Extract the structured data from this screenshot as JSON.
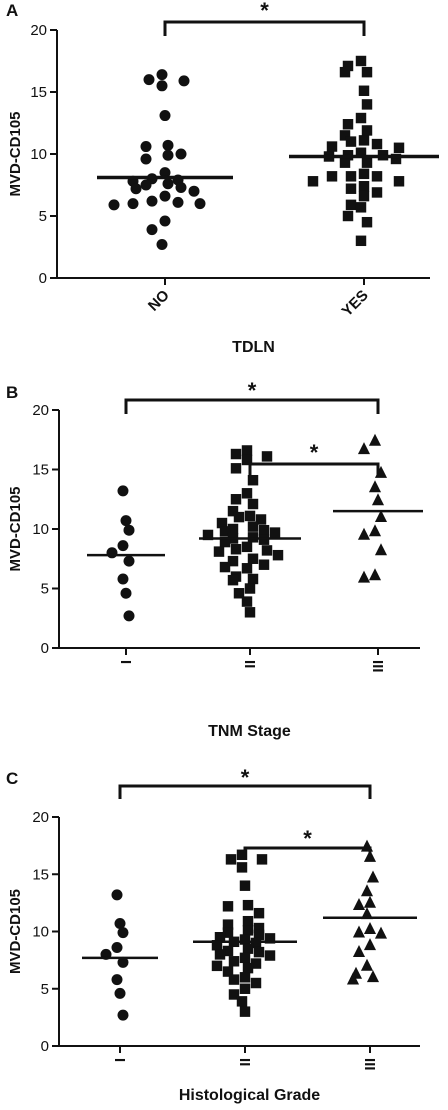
{
  "chart_data": [
    {
      "panel": "A",
      "type": "scatter",
      "ylabel": "MVD-CD105",
      "xlabel": "TDLN",
      "ylim": [
        0,
        20
      ],
      "yticks": [
        "0",
        "5",
        "10",
        "15",
        "20"
      ],
      "categories": [
        "NO",
        "YES"
      ],
      "category_label_rotation": -45,
      "grid": false,
      "series": [
        {
          "category": "NO",
          "marker": "circle",
          "mean": 8.1,
          "values": [
            16.4,
            16.0,
            15.5,
            15.9,
            13.1,
            10.6,
            10.7,
            10.0,
            9.9,
            9.6,
            8.5,
            8.0,
            7.9,
            7.6,
            7.8,
            7.5,
            7.3,
            7.2,
            7.0,
            6.6,
            6.1,
            6.2,
            6.0,
            6.0,
            5.9,
            4.6,
            3.9,
            2.7
          ]
        },
        {
          "category": "YES",
          "marker": "square",
          "mean": 9.8,
          "values": [
            17.5,
            17.1,
            16.6,
            16.6,
            15.1,
            14.0,
            12.9,
            12.4,
            11.9,
            11.5,
            11.1,
            11.0,
            10.8,
            10.6,
            10.5,
            10.1,
            9.9,
            9.9,
            9.8,
            9.6,
            9.3,
            9.3,
            8.4,
            8.2,
            8.2,
            8.2,
            7.8,
            7.8,
            7.4,
            7.2,
            6.9,
            6.6,
            5.9,
            5.7,
            5.0,
            4.5,
            3.0
          ]
        }
      ],
      "comparisons": [
        {
          "from": "NO",
          "to": "YES",
          "label": "*"
        }
      ]
    },
    {
      "panel": "B",
      "type": "scatter",
      "ylabel": "MVD-CD105",
      "xlabel": "TNM Stage",
      "ylim": [
        0,
        20
      ],
      "yticks": [
        "0",
        "5",
        "10",
        "15",
        "20"
      ],
      "categories": [
        "I",
        "II",
        "III"
      ],
      "category_label_rotation": -90,
      "grid": false,
      "series": [
        {
          "category": "I",
          "marker": "circle",
          "mean": 7.8,
          "values": [
            13.2,
            10.7,
            9.9,
            8.6,
            8.0,
            7.3,
            5.8,
            4.6,
            2.7
          ]
        },
        {
          "category": "II",
          "marker": "square",
          "mean": 9.2,
          "values": [
            16.6,
            16.3,
            16.1,
            15.8,
            15.1,
            14.1,
            13.0,
            12.5,
            12.1,
            11.5,
            11.1,
            11.0,
            10.8,
            10.5,
            10.2,
            10.0,
            9.9,
            9.8,
            9.7,
            9.5,
            9.3,
            9.2,
            9.1,
            8.9,
            8.5,
            8.3,
            8.2,
            8.1,
            7.8,
            7.5,
            7.3,
            7.0,
            6.8,
            6.7,
            6.0,
            5.8,
            5.7,
            5.0,
            4.6,
            3.9,
            3.0
          ]
        },
        {
          "category": "III",
          "marker": "triangle",
          "mean": 11.5,
          "values": [
            17.4,
            16.7,
            14.7,
            13.5,
            12.4,
            11.0,
            9.8,
            9.5,
            8.2,
            6.1,
            5.9
          ]
        }
      ],
      "comparisons": [
        {
          "from": "I",
          "to": "III",
          "label": "*"
        },
        {
          "from": "II",
          "to": "III",
          "label": "*"
        }
      ]
    },
    {
      "panel": "C",
      "type": "scatter",
      "ylabel": "MVD-CD105",
      "xlabel": "Histological Grade",
      "ylim": [
        0,
        20
      ],
      "yticks": [
        "0",
        "5",
        "10",
        "15",
        "20"
      ],
      "categories": [
        "I",
        "II",
        "III"
      ],
      "category_label_rotation": -90,
      "grid": false,
      "series": [
        {
          "category": "I",
          "marker": "circle",
          "mean": 7.7,
          "values": [
            13.2,
            10.7,
            9.9,
            8.6,
            8.0,
            7.3,
            5.8,
            4.6,
            2.7
          ]
        },
        {
          "category": "II",
          "marker": "square",
          "mean": 9.1,
          "values": [
            16.7,
            16.3,
            16.3,
            15.6,
            14.0,
            12.3,
            12.2,
            11.6,
            10.9,
            10.6,
            10.3,
            10.1,
            9.9,
            9.7,
            9.5,
            9.4,
            9.3,
            9.1,
            9.0,
            8.8,
            8.5,
            8.3,
            8.2,
            8.0,
            7.9,
            7.7,
            7.4,
            7.2,
            7.0,
            6.8,
            6.5,
            6.0,
            5.8,
            5.5,
            5.0,
            4.5,
            3.9,
            3.0
          ]
        },
        {
          "category": "III",
          "marker": "triangle",
          "mean": 11.2,
          "values": [
            17.4,
            16.5,
            14.7,
            13.5,
            12.5,
            12.3,
            11.5,
            10.2,
            9.9,
            9.8,
            8.8,
            8.2,
            7.0,
            6.3,
            6.0,
            5.8
          ]
        }
      ],
      "comparisons": [
        {
          "from": "I",
          "to": "III",
          "label": "*"
        },
        {
          "from": "II",
          "to": "III",
          "label": "*"
        }
      ]
    }
  ]
}
